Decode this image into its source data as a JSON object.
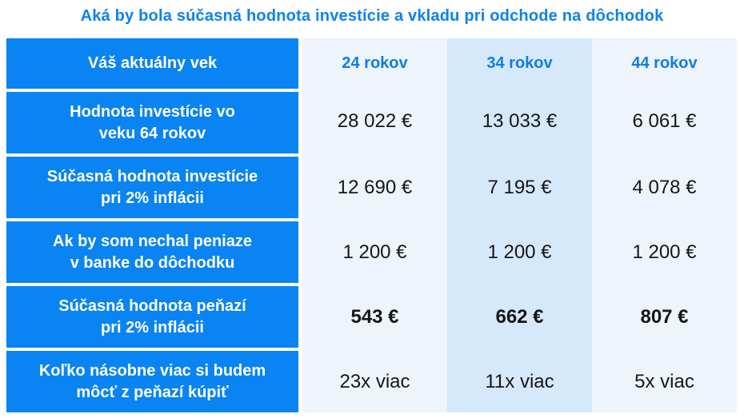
{
  "title": "Aká by bola súčasná hodnota investície a vkladu pri odchode na dôchodok",
  "table": {
    "corner_label": "Váš aktuálny vek",
    "columns": [
      "24 rokov",
      "34 rokov",
      "44 rokov"
    ],
    "rows": [
      {
        "label": "Hodnota investície vo\nveku 64 rokov",
        "values": [
          "28 022 €",
          "13 033 €",
          "6 061 €"
        ]
      },
      {
        "label": "Súčasná hodnota investície\npri 2% inflácii",
        "values": [
          "12 690 €",
          "7 195 €",
          "4 078 €"
        ]
      },
      {
        "label": "Ak by som nechal peniaze\nv banke do dôchodku",
        "values": [
          "1 200 €",
          "1 200 €",
          "1 200 €"
        ]
      },
      {
        "label": "Súčasná hodnota peňazí\npri 2% inflácii",
        "values": [
          "543 €",
          "662 €",
          "807 €"
        ]
      },
      {
        "label": "Koľko násobne viac si budem\nmôcť z peňazí kúpiť",
        "values": [
          "23x viac",
          "11x viac",
          "5x viac"
        ]
      }
    ]
  },
  "colors": {
    "accent_blue": "#0a84f2",
    "header_text_blue": "#0e7de6",
    "title_blue": "#0c82f0",
    "column_light": "#edf4fb",
    "column_mid": "#d6e9fb",
    "value_text": "#161616",
    "separator": "#ffffff"
  },
  "chart_data": {
    "type": "table",
    "title": "Aká by bola súčasná hodnota investície a vkladu pri odchode na dôchodok",
    "corner_label": "Váš aktuálny vek",
    "columns": [
      "24 rokov",
      "34 rokov",
      "44 rokov"
    ],
    "rows": [
      {
        "label": "Hodnota investície vo veku 64 rokov",
        "unit": "€",
        "values": [
          28022,
          13033,
          6061
        ]
      },
      {
        "label": "Súčasná hodnota investície pri 2% inflácii",
        "unit": "€",
        "values": [
          12690,
          7195,
          4078
        ]
      },
      {
        "label": "Ak by som nechal peniaze v banke do dôchodku",
        "unit": "€",
        "values": [
          1200,
          1200,
          1200
        ]
      },
      {
        "label": "Súčasná hodnota peňazí pri 2% inflácii",
        "unit": "€",
        "values": [
          543,
          662,
          807
        ]
      },
      {
        "label": "Koľko násobne viac si budem môcť z peňazí kúpiť",
        "values": [
          "23x viac",
          "11x viac",
          "5x viac"
        ]
      }
    ],
    "bold_rows": [
      "Súčasná hodnota peňazí pri 2% inflácii"
    ],
    "layout": {
      "label_column_style": "solid blue, white bold text",
      "column_band_colors": [
        "#edf4fb",
        "#d6e9fb",
        "#edf4fb"
      ]
    }
  }
}
